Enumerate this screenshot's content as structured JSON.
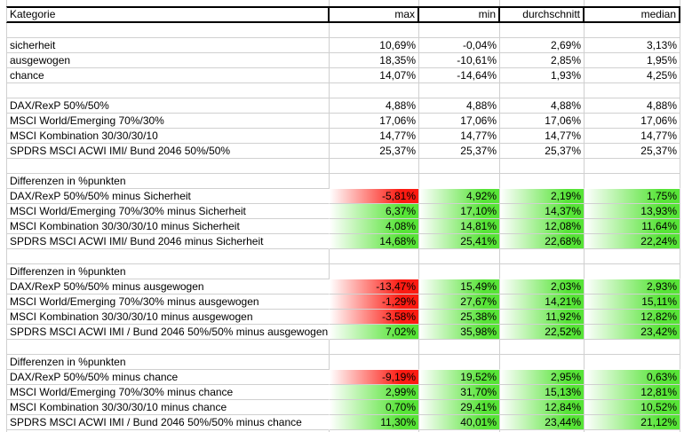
{
  "sheet": {
    "header": {
      "category": "Kategorie",
      "cols": [
        "max",
        "min",
        "durchschnitt",
        "median"
      ]
    },
    "colors": {
      "positive": "#57e437",
      "negative": "#fc1b12",
      "gridline": "#d0d0d0",
      "header_border": "#000000"
    },
    "rows": [
      {
        "type": "blank"
      },
      {
        "type": "data",
        "label": "sicherheit",
        "values": [
          "10,69%",
          "-0,04%",
          "2,69%",
          "3,13%"
        ]
      },
      {
        "type": "data",
        "label": "ausgewogen",
        "values": [
          "18,35%",
          "-10,61%",
          "2,85%",
          "1,95%"
        ]
      },
      {
        "type": "data",
        "label": "chance",
        "values": [
          "14,07%",
          "-14,64%",
          "1,93%",
          "4,25%"
        ]
      },
      {
        "type": "blank"
      },
      {
        "type": "data",
        "label": "DAX/RexP 50%/50%",
        "values": [
          "4,88%",
          "4,88%",
          "4,88%",
          "4,88%"
        ]
      },
      {
        "type": "data",
        "label": "MSCI World/Emerging 70%/30%",
        "values": [
          "17,06%",
          "17,06%",
          "17,06%",
          "17,06%"
        ]
      },
      {
        "type": "data",
        "label": "MSCI Kombination 30/30/30/10",
        "values": [
          "14,77%",
          "14,77%",
          "14,77%",
          "14,77%"
        ]
      },
      {
        "type": "data",
        "label": "SPDRS MSCI ACWI IMI/ Bund 2046 50%/50%",
        "values": [
          "25,37%",
          "25,37%",
          "25,37%",
          "25,37%"
        ]
      },
      {
        "type": "blank"
      },
      {
        "type": "section",
        "label": "Differenzen in %punkten"
      },
      {
        "type": "diff",
        "label": "DAX/RexP 50%/50% minus Sicherheit",
        "values": [
          "-5,81%",
          "4,92%",
          "2,19%",
          "1,75%"
        ]
      },
      {
        "type": "diff",
        "label": "MSCI World/Emerging 70%/30% minus Sicherheit",
        "values": [
          "6,37%",
          "17,10%",
          "14,37%",
          "13,93%"
        ]
      },
      {
        "type": "diff",
        "label": "MSCI Kombination 30/30/30/10 minus Sicherheit",
        "values": [
          "4,08%",
          "14,81%",
          "12,08%",
          "11,64%"
        ]
      },
      {
        "type": "diff",
        "label": "SPDRS MSCI ACWI IMI/ Bund 2046 minus Sicherheit",
        "values": [
          "14,68%",
          "25,41%",
          "22,68%",
          "22,24%"
        ]
      },
      {
        "type": "blank"
      },
      {
        "type": "section",
        "label": "Differenzen in %punkten"
      },
      {
        "type": "diff",
        "label": "DAX/RexP 50%/50% minus ausgewogen",
        "values": [
          "-13,47%",
          "15,49%",
          "2,03%",
          "2,93%"
        ]
      },
      {
        "type": "diff",
        "label": "MSCI World/Emerging 70%/30% minus ausgewogen",
        "values": [
          "-1,29%",
          "27,67%",
          "14,21%",
          "15,11%"
        ]
      },
      {
        "type": "diff",
        "label": "MSCI Kombination 30/30/30/10 minus ausgewogen",
        "values": [
          "-3,58%",
          "25,38%",
          "11,92%",
          "12,82%"
        ]
      },
      {
        "type": "diff",
        "label": "SPDRS MSCI ACWI IMI / Bund 2046  50%/50% minus ausgewogen",
        "values": [
          "7,02%",
          "35,98%",
          "22,52%",
          "23,42%"
        ]
      },
      {
        "type": "blank"
      },
      {
        "type": "section",
        "label": "Differenzen in %punkten"
      },
      {
        "type": "diff",
        "label": "DAX/RexP 50%/50% minus chance",
        "values": [
          "-9,19%",
          "19,52%",
          "2,95%",
          "0,63%"
        ]
      },
      {
        "type": "diff",
        "label": "MSCI World/Emerging 70%/30% minus chance",
        "values": [
          "2,99%",
          "31,70%",
          "15,13%",
          "12,81%"
        ]
      },
      {
        "type": "diff",
        "label": "MSCI Kombination 30/30/30/10 minus chance",
        "values": [
          "0,70%",
          "29,41%",
          "12,84%",
          "10,52%"
        ]
      },
      {
        "type": "diff",
        "label": "SPDRS MSCI ACWI IMI / Bund 2046 50%/50% minus chance",
        "values": [
          "11,30%",
          "40,01%",
          "23,44%",
          "21,12%"
        ]
      },
      {
        "type": "blank"
      }
    ]
  }
}
